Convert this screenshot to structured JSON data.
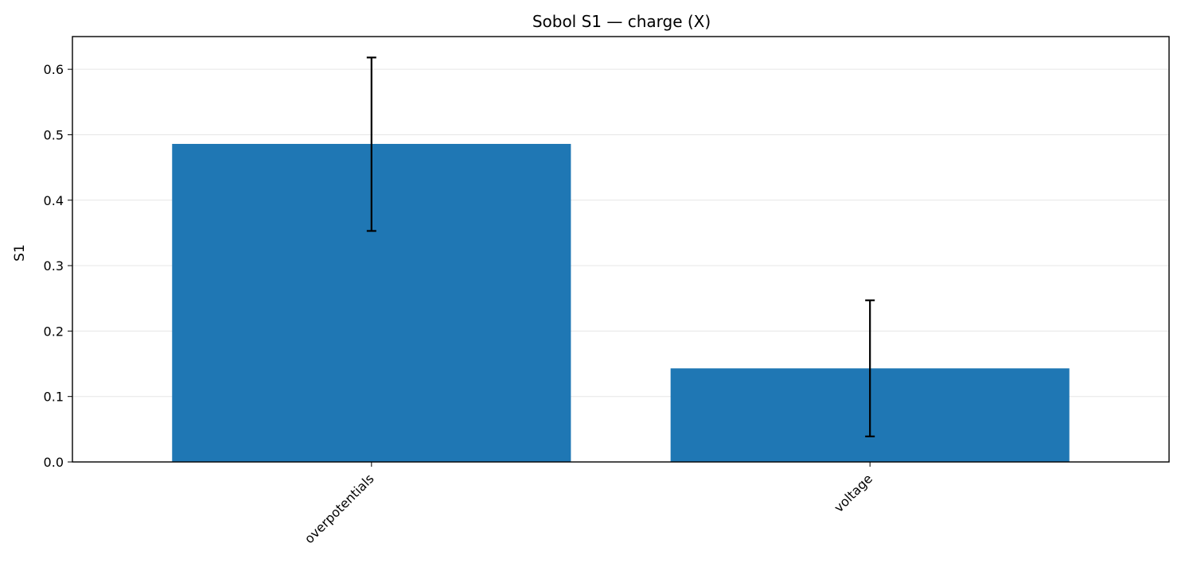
{
  "chart_data": {
    "type": "bar",
    "title": "Sobol S1 — charge (X)",
    "xlabel": "",
    "ylabel": "S1",
    "categories": [
      "overpotentials",
      "voltage"
    ],
    "values": [
      0.486,
      0.143
    ],
    "error_low": [
      0.353,
      0.039
    ],
    "error_high": [
      0.618,
      0.247
    ],
    "ylim": [
      0,
      0.65
    ],
    "yticks": [
      "0.0",
      "0.1",
      "0.2",
      "0.3",
      "0.4",
      "0.5",
      "0.6"
    ],
    "grid": "y",
    "legend": "none",
    "colors": {
      "bar": "#1f77b4",
      "error": "#000000",
      "grid": "#e6e6e6",
      "axis": "#000000"
    }
  }
}
